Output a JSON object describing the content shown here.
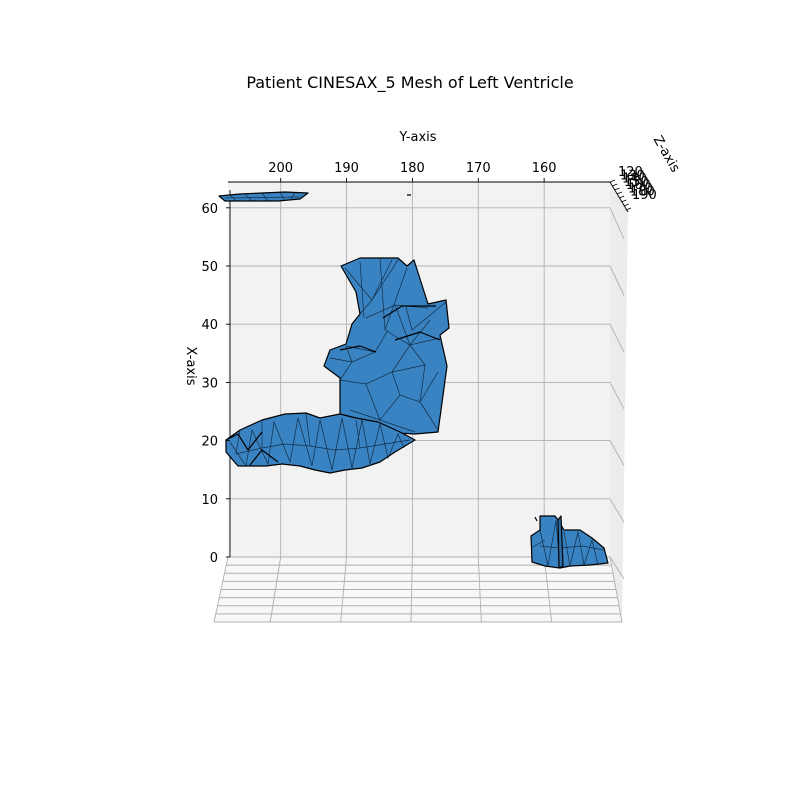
{
  "chart_data": {
    "type": "mesh3d",
    "title": "Patient CINESAX_5 Mesh of Left Ventricle",
    "xlabel": "X-axis",
    "ylabel": "Y-axis",
    "zlabel": "Z-axis",
    "x_ticks": [
      "0",
      "10",
      "20",
      "30",
      "40",
      "50",
      "60"
    ],
    "y_ticks": [
      "200",
      "190",
      "180",
      "170",
      "160"
    ],
    "z_ticks": [
      "120",
      "130",
      "140",
      "150",
      "160",
      "170",
      "180",
      "190"
    ],
    "xlim": [
      0,
      62
    ],
    "ylim": [
      208,
      150
    ],
    "view": "top-down, Y axis across the top reversed, X axis vertical on the left",
    "grid": true,
    "mesh_color": "#3a83c2",
    "edge_color": "#000000",
    "pane_color": "#f2f2f2"
  }
}
